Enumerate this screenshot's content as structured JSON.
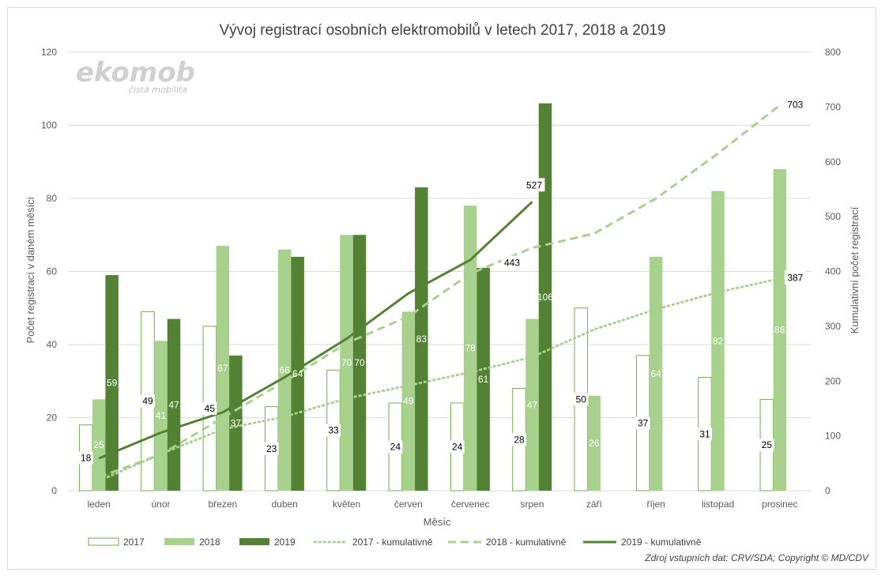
{
  "colors": {
    "c2017_fill": "#ffffff",
    "c2017_stroke": "#70ad47",
    "c2018": "#a9d18e",
    "c2019": "#548235",
    "cum2017": "#a9d18e",
    "cum2018": "#a9d18e",
    "cum2019": "#548235",
    "grid": "#d9d9d9"
  },
  "logo": {
    "name": "ekomob",
    "tagline": "čistá mobilita"
  },
  "source_note": "Zdroj vstupních dat: CRV/SDA; Copyright © MD/CDV",
  "chart_data": {
    "type": "bar",
    "title": "Vývoj registrací osobních elektromobilů v letech 2017, 2018 a 2019",
    "xlabel": "Měsíc",
    "ylabel": "Počet registrací v daném měsíci",
    "y2label": "Kumulativní počet registrací",
    "ylim": [
      0,
      120
    ],
    "yticks": [
      0,
      20,
      40,
      60,
      80,
      100,
      120
    ],
    "y2lim": [
      0,
      800
    ],
    "y2ticks": [
      0,
      100,
      200,
      300,
      400,
      500,
      600,
      700,
      800
    ],
    "grid": true,
    "legend_position": "bottom",
    "categories": [
      "leden",
      "únor",
      "březen",
      "duben",
      "květen",
      "červen",
      "červenec",
      "srpen",
      "září",
      "říjen",
      "listopad",
      "prosinec"
    ],
    "series": [
      {
        "name": "2017",
        "type": "bar",
        "axis": "left",
        "values": [
          18,
          49,
          45,
          23,
          33,
          24,
          24,
          28,
          50,
          37,
          31,
          25
        ]
      },
      {
        "name": "2018",
        "type": "bar",
        "axis": "left",
        "values": [
          25,
          41,
          67,
          66,
          70,
          49,
          78,
          47,
          26,
          64,
          82,
          88
        ]
      },
      {
        "name": "2019",
        "type": "bar",
        "axis": "left",
        "values": [
          59,
          47,
          37,
          64,
          70,
          83,
          61,
          106,
          null,
          null,
          null,
          null
        ]
      },
      {
        "name": "2017 - kumulativně",
        "type": "line",
        "style": "dotted",
        "axis": "right",
        "values": [
          18,
          67,
          112,
          135,
          168,
          192,
          216,
          244,
          294,
          331,
          362,
          387
        ]
      },
      {
        "name": "2018 - kumulativně",
        "type": "line",
        "style": "dashed",
        "axis": "right",
        "values": [
          25,
          66,
          133,
          199,
          269,
          318,
          396,
          443,
          469,
          533,
          615,
          703
        ]
      },
      {
        "name": "2019 - kumulativně",
        "type": "line",
        "style": "solid",
        "axis": "right",
        "values": [
          59,
          106,
          143,
          207,
          277,
          360,
          421,
          527,
          null,
          null,
          null,
          null
        ]
      }
    ],
    "end_labels": [
      {
        "series": "2017 - kumulativně",
        "label": "387"
      },
      {
        "series": "2018 - kumulativně",
        "label": "703"
      },
      {
        "series": "2018 - kumulativně at srpen",
        "label": "443"
      },
      {
        "series": "2019 - kumulativně",
        "label": "527"
      }
    ]
  }
}
